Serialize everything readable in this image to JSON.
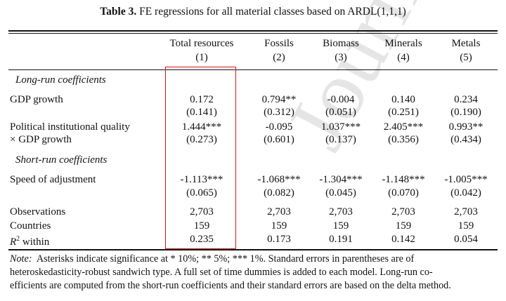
{
  "watermark": "Journal Pre-proof",
  "table": {
    "title_label": "Table 3.",
    "title_text": "FE regressions for all material classes based on ARDL(1,1,1)",
    "columns": [
      {
        "name": "Total resources",
        "num": "(1)"
      },
      {
        "name": "Fossils",
        "num": "(2)"
      },
      {
        "name": "Biomass",
        "num": "(3)"
      },
      {
        "name": "Minerals",
        "num": "(4)"
      },
      {
        "name": "Metals",
        "num": "(5)"
      }
    ],
    "sections": {
      "long_run": "Long-run coefficients",
      "short_run": "Short-run coefficients"
    },
    "rows": [
      {
        "label": "GDP growth",
        "values": [
          "0.172",
          "0.794**",
          "-0.004",
          "0.140",
          "0.234"
        ]
      },
      {
        "label": "",
        "values": [
          "(0.141)",
          "(0.312)",
          "(0.051)",
          "(0.251)",
          "(0.190)"
        ]
      },
      {
        "label": "Political institutional quality",
        "values": [
          "1.444***",
          "-0.095",
          "1.037***",
          "2.405***",
          "0.993**"
        ]
      },
      {
        "label": "× GDP growth",
        "values": [
          "(0.273)",
          "(0.601)",
          "(0.137)",
          "(0.356)",
          "(0.434)"
        ]
      },
      {
        "label": "Speed of adjustment",
        "values": [
          "-1.113***",
          "-1.068***",
          "-1.304***",
          "-1.148***",
          "-1.005***"
        ]
      },
      {
        "label": "",
        "values": [
          "(0.065)",
          "(0.082)",
          "(0.045)",
          "(0.070)",
          "(0.042)"
        ]
      },
      {
        "label": "Observations",
        "values": [
          "2,703",
          "2,703",
          "2,703",
          "2,703",
          "2,703"
        ]
      },
      {
        "label": "Countries",
        "values": [
          "159",
          "159",
          "159",
          "159",
          "159"
        ]
      },
      {
        "label": "R² within",
        "values": [
          "0.235",
          "0.173",
          "0.191",
          "0.142",
          "0.054"
        ]
      }
    ],
    "note_label": "Note:",
    "note_lines": [
      "Asterisks indicate significance at * 10%; ** 5%; *** 1%.  Standard errors in parentheses are of",
      "heteroskedasticity-robust sandwich type.  A full set of time dummies is added to each model.  Long-run co-",
      "efficients are computed from the short-run coefficients and their standard errors are based on the delta method."
    ],
    "highlight_color": "#e01010"
  }
}
